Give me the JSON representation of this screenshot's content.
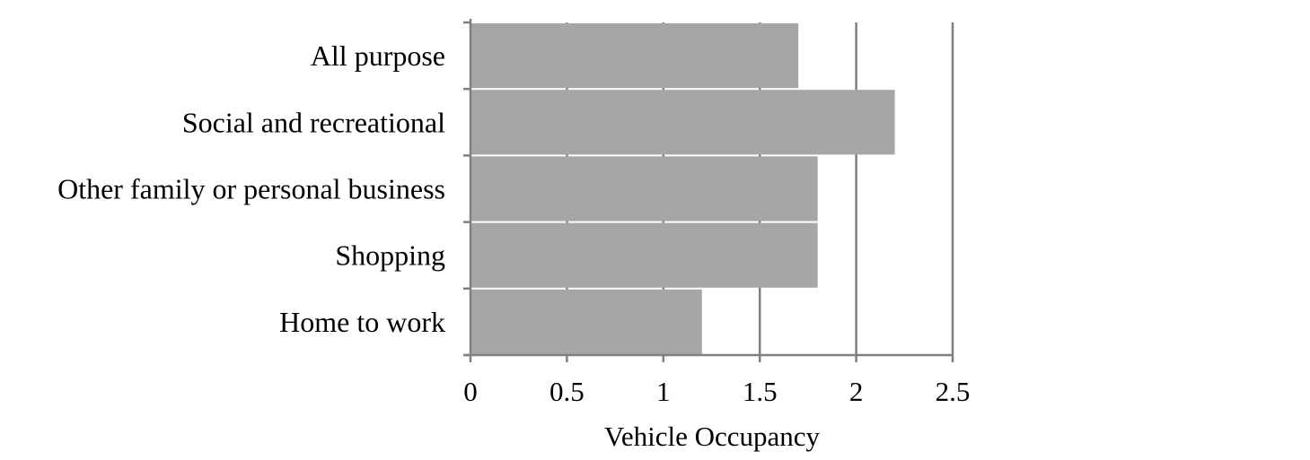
{
  "colors": {
    "bar": "#a6a6a6",
    "bar_separator": "#ffffff",
    "grid": "#808080",
    "axis": "#808080",
    "text": "#000000"
  },
  "chart_data": {
    "type": "bar",
    "orientation": "horizontal",
    "categories": [
      "All purpose",
      "Social and recreational",
      "Other family or personal business",
      "Shopping",
      "Home to work"
    ],
    "values": [
      1.7,
      2.2,
      1.8,
      1.8,
      1.2
    ],
    "xlabel": "Vehicle Occupancy",
    "ylabel": "",
    "xlim": [
      0,
      2.5
    ],
    "xticks": [
      0,
      0.5,
      1,
      1.5,
      2,
      2.5
    ],
    "xtick_labels": [
      "0",
      "0.5",
      "1",
      "1.5",
      "2",
      "2.5"
    ],
    "grid": "vertical",
    "legend": "none"
  }
}
